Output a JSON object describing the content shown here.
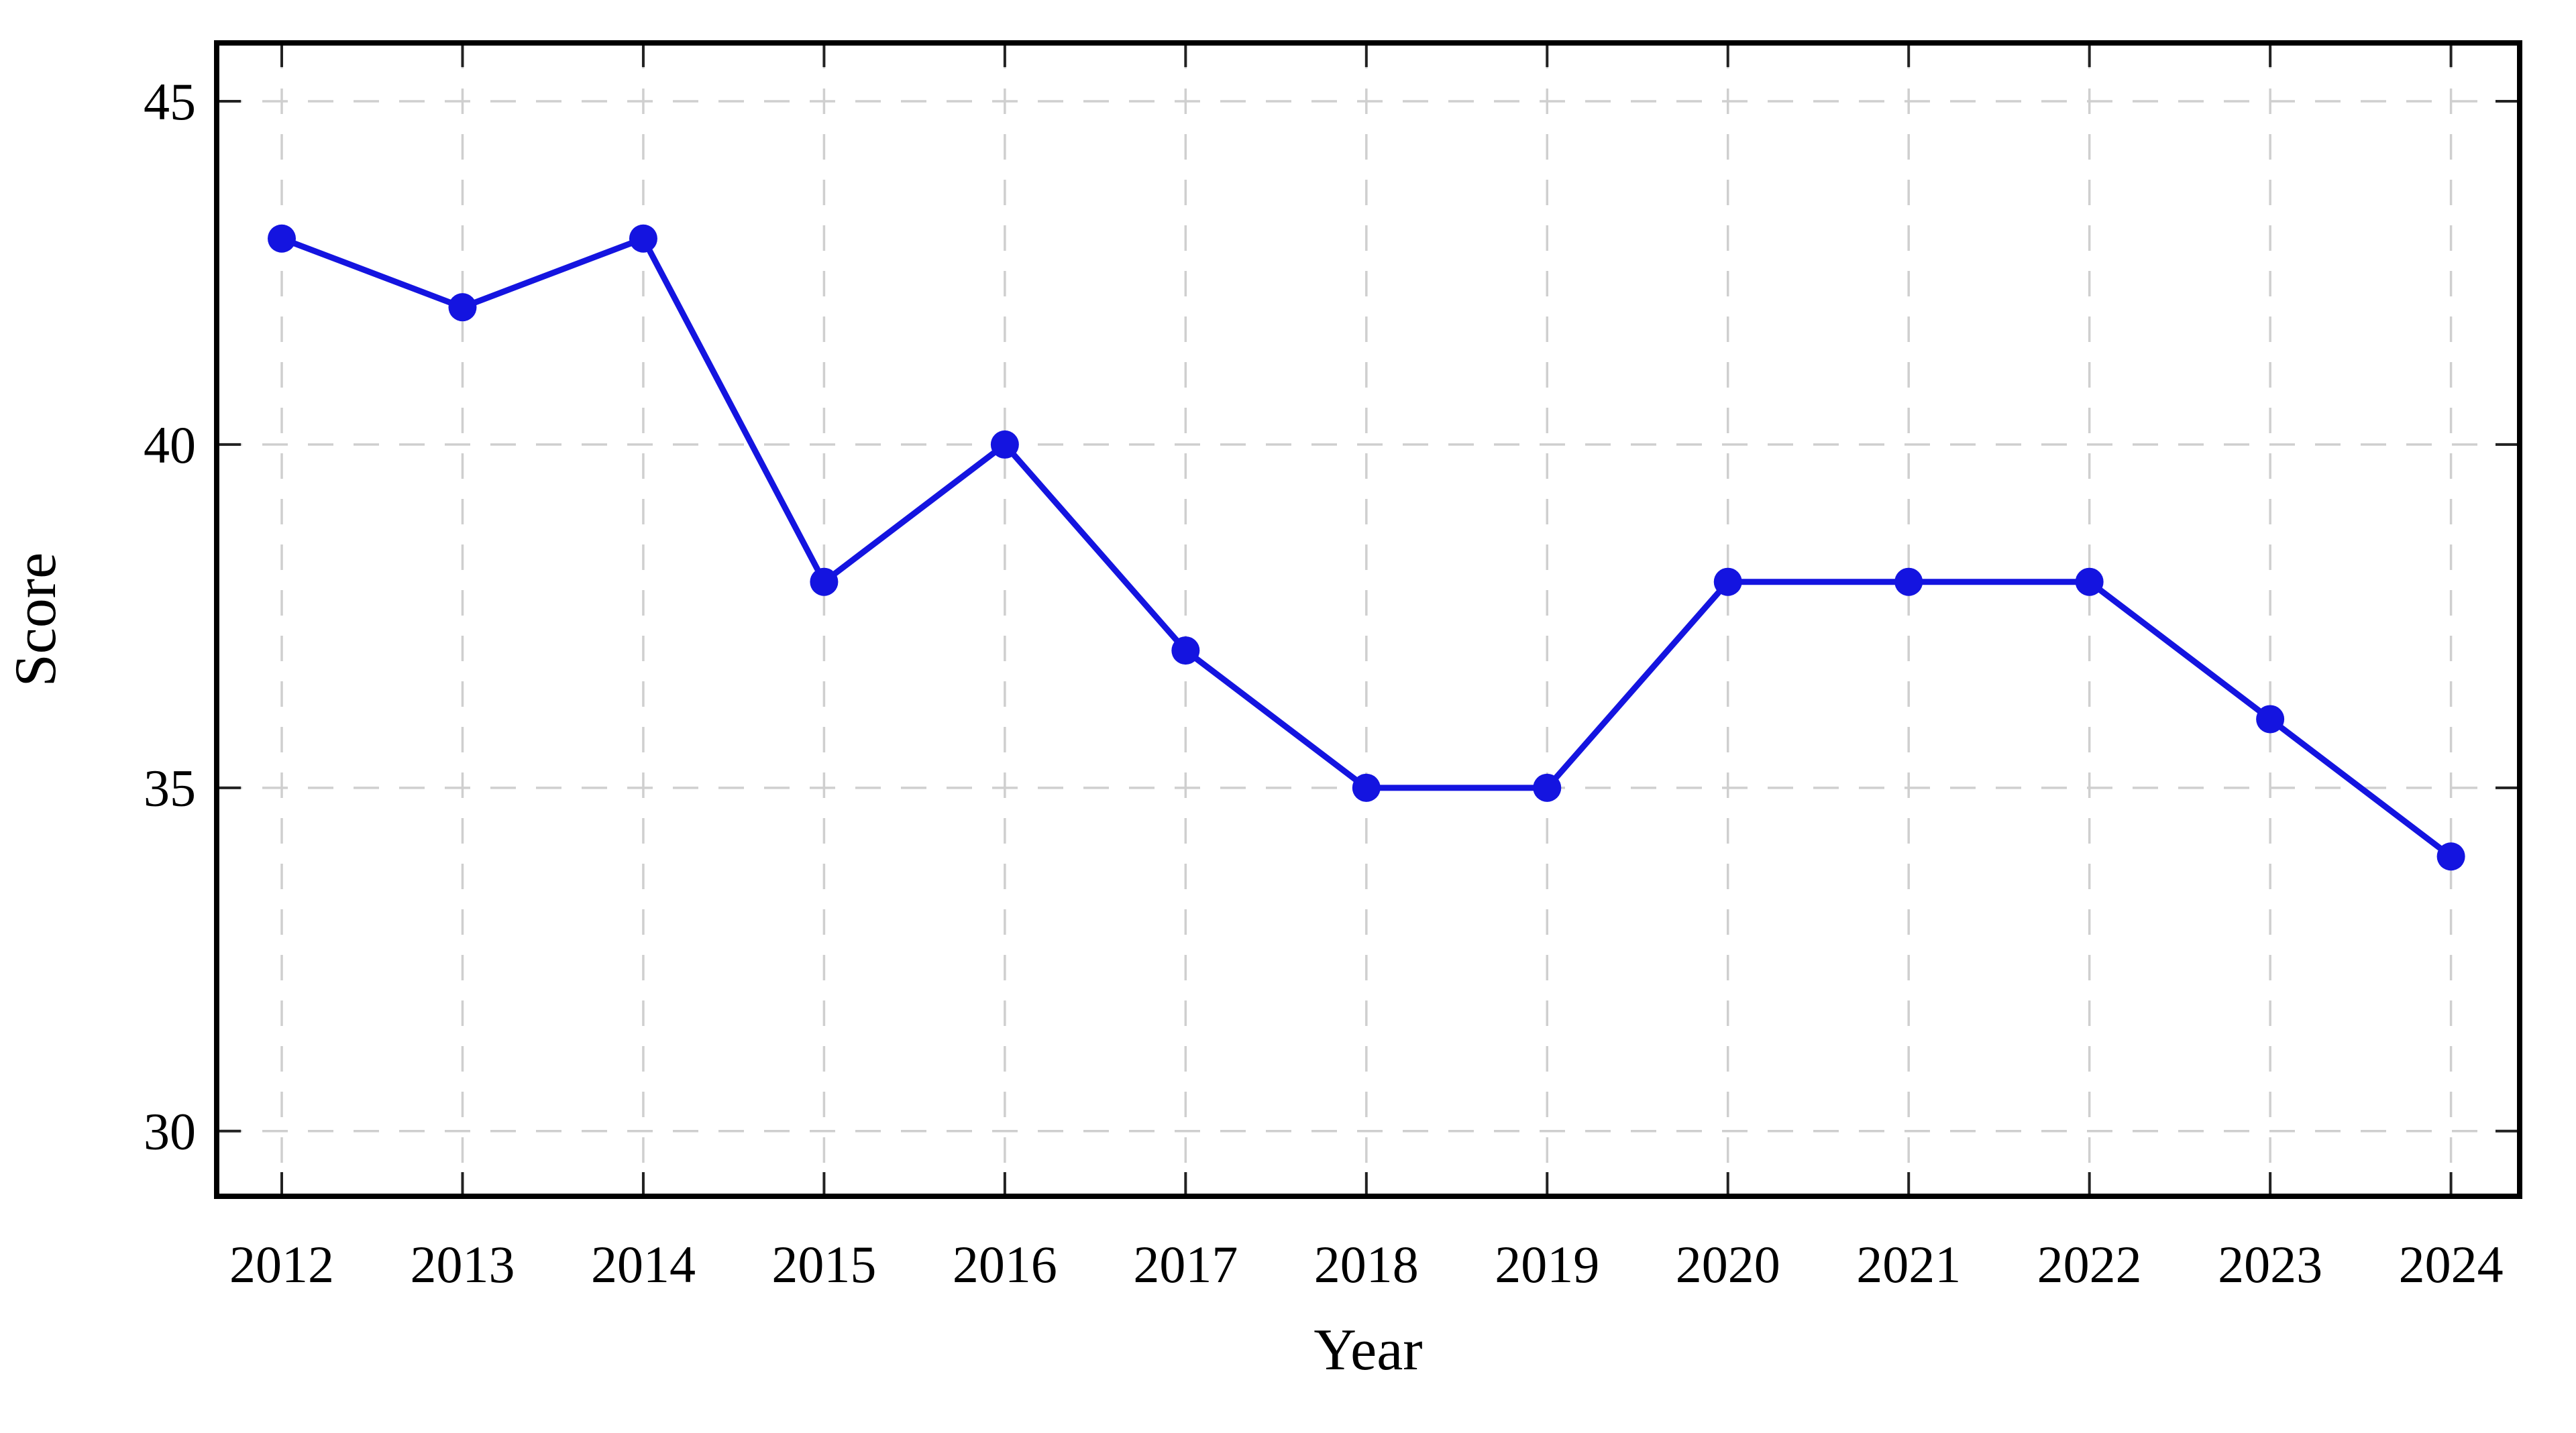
{
  "chart_data": {
    "type": "line",
    "title": "",
    "xlabel": "Year",
    "ylabel": "Score",
    "x": [
      2012,
      2013,
      2014,
      2015,
      2016,
      2017,
      2018,
      2019,
      2020,
      2021,
      2022,
      2023,
      2024
    ],
    "x_tick_labels": [
      "2012",
      "2013",
      "2014",
      "2015",
      "2016",
      "2017",
      "2018",
      "2019",
      "2020",
      "2021",
      "2022",
      "2023",
      "2024"
    ],
    "series": [
      {
        "name": "Score",
        "values": [
          43,
          42,
          43,
          38,
          40,
          37,
          35,
          35,
          38,
          38,
          38,
          36,
          34
        ]
      }
    ],
    "yticks": [
      30,
      35,
      40,
      45
    ],
    "y_tick_labels": [
      "30",
      "35",
      "40",
      "45"
    ],
    "xlim": [
      2011.64,
      2024.38
    ],
    "ylim": [
      29.05,
      45.85
    ],
    "grid": "dashed-both-axes",
    "legend": "none",
    "marker": "filled-circle",
    "colors": {
      "line": "#1414e0",
      "marker": "#1414e0",
      "grid": "#cfcfcf",
      "axis": "#000000",
      "tick": "#222222",
      "background": "#ffffff"
    }
  }
}
